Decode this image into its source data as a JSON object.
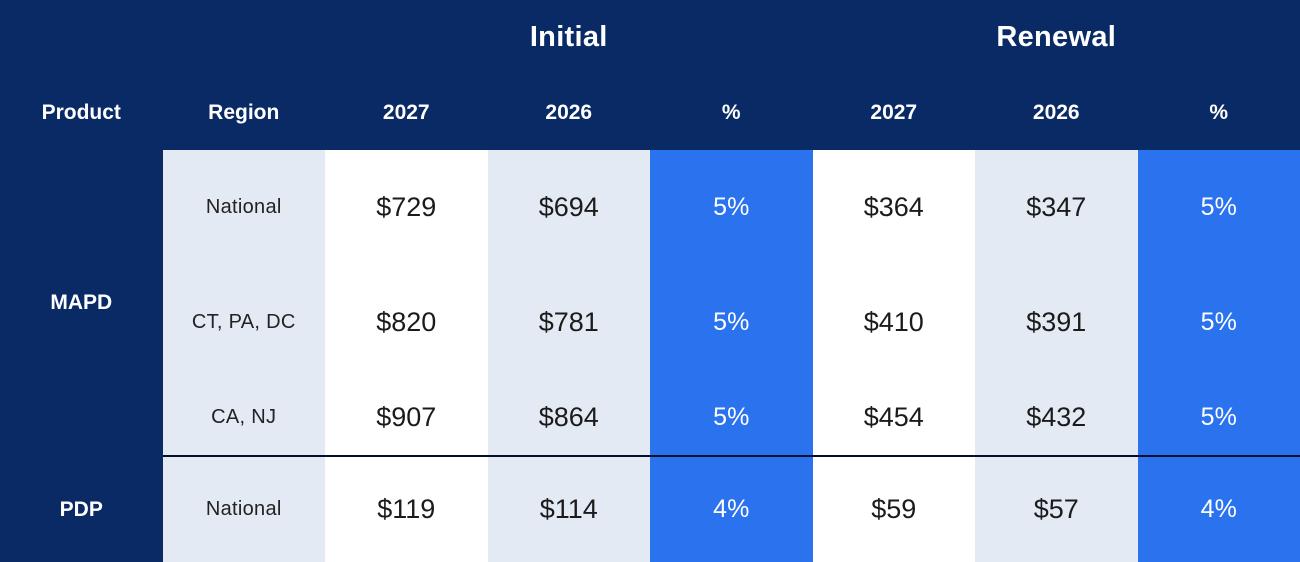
{
  "chart_data": {
    "type": "table",
    "title": "",
    "column_groups": [
      "",
      "",
      "Initial",
      "Initial",
      "Initial",
      "Renewal",
      "Renewal",
      "Renewal"
    ],
    "columns": [
      "Product",
      "Region",
      "2027",
      "2026",
      "%",
      "2027",
      "2026",
      "%"
    ],
    "rows": [
      [
        "MAPD",
        "National",
        "$729",
        "$694",
        "5%",
        "$364",
        "$347",
        "5%"
      ],
      [
        "MAPD",
        "CT, PA, DC",
        "$820",
        "$781",
        "5%",
        "$410",
        "$391",
        "5%"
      ],
      [
        "MAPD",
        "CA, NJ",
        "$907",
        "$864",
        "5%",
        "$454",
        "$432",
        "5%"
      ],
      [
        "PDP",
        "National",
        "$119",
        "$114",
        "4%",
        "$59",
        "$57",
        "4%"
      ]
    ]
  },
  "titles": {
    "initial": "Initial",
    "renewal": "Renewal"
  },
  "headers": {
    "product": "Product",
    "region": "Region",
    "year_2027": "2027",
    "year_2026": "2026",
    "percent": "%"
  },
  "groups": [
    {
      "product": "MAPD",
      "rows": [
        {
          "region": "National",
          "initial_2027": "$729",
          "initial_2026": "$694",
          "initial_pct": "5%",
          "renewal_2027": "$364",
          "renewal_2026": "$347",
          "renewal_pct": "5%"
        },
        {
          "region": "CT, PA, DC",
          "initial_2027": "$820",
          "initial_2026": "$781",
          "initial_pct": "5%",
          "renewal_2027": "$410",
          "renewal_2026": "$391",
          "renewal_pct": "5%"
        },
        {
          "region": "CA, NJ",
          "initial_2027": "$907",
          "initial_2026": "$864",
          "initial_pct": "5%",
          "renewal_2027": "$454",
          "renewal_2026": "$432",
          "renewal_pct": "5%"
        }
      ]
    },
    {
      "product": "PDP",
      "rows": [
        {
          "region": "National",
          "initial_2027": "$119",
          "initial_2026": "$114",
          "initial_pct": "4%",
          "renewal_2027": "$59",
          "renewal_2026": "$57",
          "renewal_pct": "4%"
        }
      ]
    }
  ],
  "colors": {
    "navy": "#0a2a66",
    "blue": "#2a72ee",
    "light": "#e3eaf4",
    "white": "#ffffff",
    "text-dark": "#1b1b1b"
  }
}
